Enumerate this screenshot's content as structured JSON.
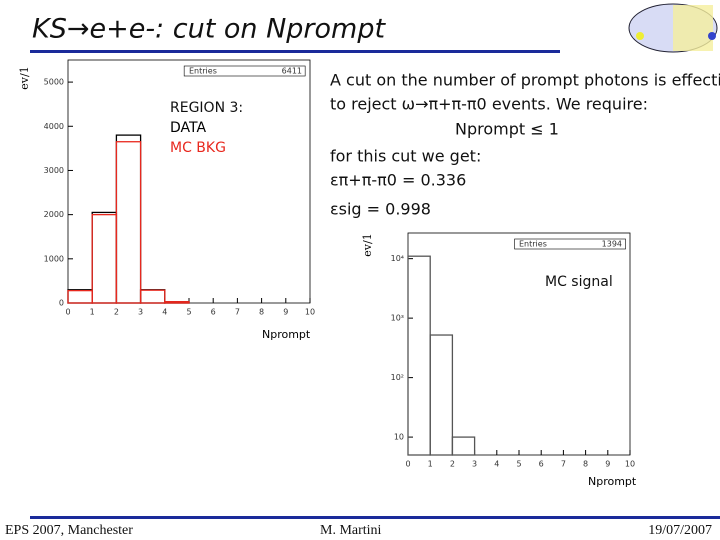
{
  "slide": {
    "title": "KS→e+e-: cut on Nprompt",
    "text": [
      "A cut on the number of prompt photons is effective",
      "to reject ω→π+π-π0 events. We require:",
      "Nprompt ≤ 1",
      "for this cut we get:",
      "επ+π-π0 = 0.336",
      "εsig = 0.998"
    ],
    "footer": [
      "EPS 2007, Manchester",
      "M. Martini",
      "19/07/2007"
    ]
  },
  "chart_data": [
    {
      "type": "histogram",
      "y_label": "ev/1",
      "x_label": "Nprompt",
      "stats": [
        "Entries",
        "6411"
      ],
      "legend": [
        "REGION 3:"
      ],
      "bins": [
        0,
        1,
        2,
        3,
        4,
        5,
        6,
        7,
        8,
        9,
        10
      ],
      "series": [
        {
          "name": "DATA",
          "color": "#000000",
          "values": [
            300,
            2050,
            3800,
            300,
            30,
            0,
            0,
            0,
            0,
            0
          ]
        },
        {
          "name": "MC BKG",
          "color": "#e8281e",
          "values": [
            280,
            2000,
            3650,
            290,
            30,
            0,
            0,
            0,
            0,
            0
          ]
        }
      ],
      "xlim": [
        0,
        10
      ],
      "xticks": [
        0,
        1,
        2,
        3,
        4,
        5,
        6,
        7,
        8,
        9,
        10
      ],
      "ylim": [
        0,
        5500
      ],
      "yticks": [
        0,
        1000,
        2000,
        3000,
        4000,
        5000
      ]
    },
    {
      "type": "histogram",
      "y_label": "ev/1",
      "x_label": "Nprompt",
      "stats": [
        "Entries",
        "1394"
      ],
      "legend": [
        "MC signal"
      ],
      "log_y": true,
      "bins": [
        0,
        1,
        2,
        3,
        4,
        5,
        6,
        7,
        8,
        9,
        10
      ],
      "series": [
        {
          "color": "#555555",
          "values": [
            11000,
            520,
            10,
            0,
            0,
            0,
            0,
            0,
            0,
            0
          ]
        }
      ],
      "xlim": [
        0,
        10
      ],
      "xticks": [
        0,
        1,
        2,
        3,
        4,
        5,
        6,
        7,
        8,
        9,
        10
      ],
      "ylim": [
        5,
        27000
      ],
      "yticks": [
        {
          "value": 10,
          "label": "10"
        },
        {
          "value": 100,
          "label": "10²"
        },
        {
          "value": 1000,
          "label": "10³"
        },
        {
          "value": 10000,
          "label": "10⁴"
        }
      ]
    }
  ]
}
